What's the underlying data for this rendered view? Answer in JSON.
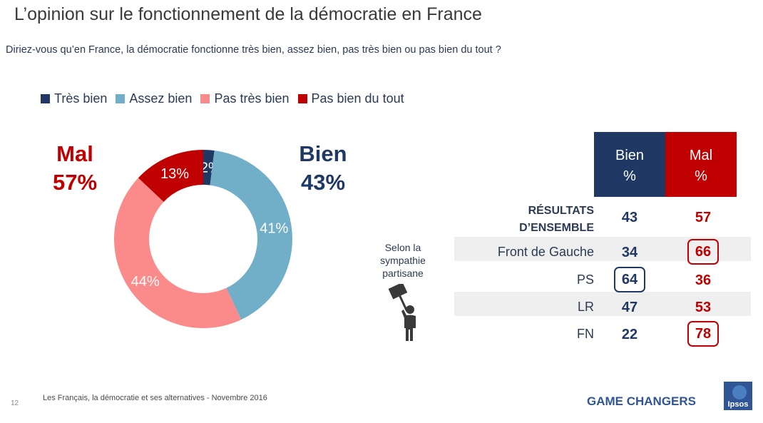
{
  "title": "L’opinion sur le fonctionnement de la démocratie en France",
  "question": "Diriez-vous qu’en France, la démocratie fonctionne très bien, assez bien, pas très bien ou pas bien du tout ?",
  "colors": {
    "tres_bien": "#1f3864",
    "assez_bien": "#71afc9",
    "pas_tres_bien": "#fb8a8a",
    "pas_bien_du_tout": "#c00000"
  },
  "summary": {
    "mal": {
      "label": "Mal",
      "value": "57%"
    },
    "bien": {
      "label": "Bien",
      "value": "43%"
    }
  },
  "chart_data": {
    "type": "pie",
    "donut": true,
    "series": [
      {
        "name": "Très bien",
        "value": 2,
        "label": "2%"
      },
      {
        "name": "Assez bien",
        "value": 41,
        "label": "41%"
      },
      {
        "name": "Pas très bien",
        "value": 44,
        "label": "44%"
      },
      {
        "name": "Pas bien du tout",
        "value": 13,
        "label": "13%"
      }
    ],
    "legend_position": "top"
  },
  "table": {
    "headers": [
      {
        "line1": "Bien",
        "line2": "%"
      },
      {
        "line1": "Mal",
        "line2": "%"
      }
    ],
    "rows": [
      {
        "label_line1": "RÉSULTATS",
        "label_line2": "D’ENSEMBLE",
        "bien": "43",
        "mal": "57"
      },
      {
        "label": "Front de Gauche",
        "bien": "34",
        "mal": "66"
      },
      {
        "label": "PS",
        "bien": "64",
        "mal": "36"
      },
      {
        "label": "LR",
        "bien": "47",
        "mal": "53"
      },
      {
        "label": "FN",
        "bien": "22",
        "mal": "78"
      }
    ]
  },
  "sympathie": {
    "line1": "Selon la",
    "line2": "sympathie",
    "line3": "partisane"
  },
  "footer": {
    "page": "12",
    "source": "Les Français, la démocratie et ses alternatives - Novembre 2016",
    "brand": "GAME CHANGERS",
    "logo_text": "Ipsos"
  }
}
